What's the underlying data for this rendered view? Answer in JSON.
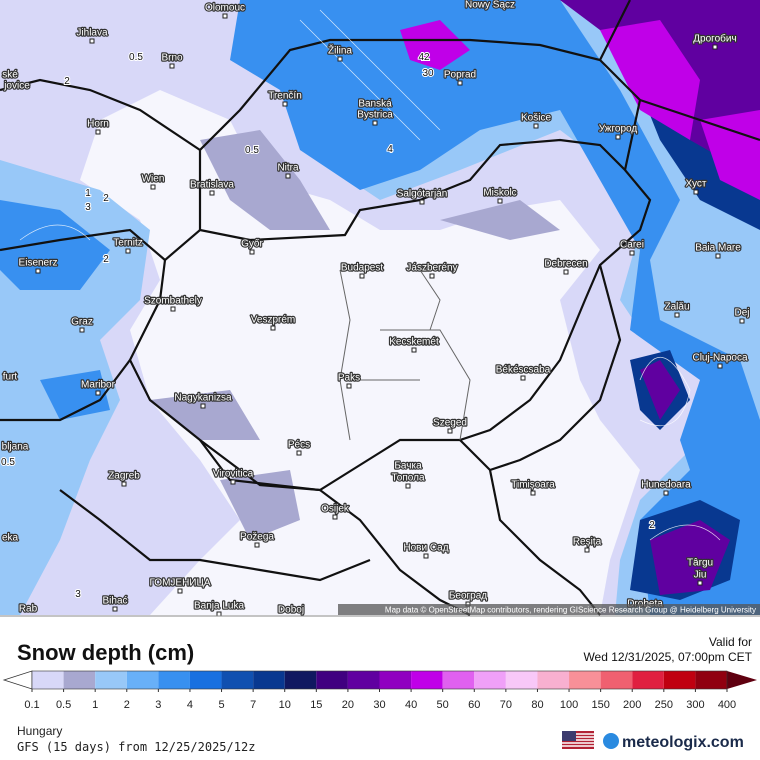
{
  "map": {
    "labels": [
      "Olomouc",
      "Jihlava",
      "Brno",
      "Žilina",
      "Nowy Sącz",
      "Poprad",
      "Trenčín",
      "Banská",
      "Bystrica",
      "Košice",
      "Ужгород",
      "Дрогобич",
      "Horn",
      "Nitra",
      "Wien",
      "Bratislava",
      "Salgótarján",
      "Miskolc",
      "Хуст",
      "Ternitz",
      "Eisenerz",
      "Győr",
      "Budapest",
      "Jászberény",
      "Debrecen",
      "Carei",
      "Baia Mare",
      "Szombathely",
      "Graz",
      "Veszprém",
      "Zalău",
      "Dej",
      "Kecskemét",
      "Cluj-Napoca",
      "Paks",
      "Békéscsaba",
      "Maribor",
      "Nagykanizsa",
      "Szeged",
      "Pécs",
      "Zagreb",
      "Virovitica",
      "Бачка",
      "Топола",
      "Timișoara",
      "Hunedoara",
      "Osijek",
      "Požega",
      "Нови Сад",
      "Reșița",
      "Târgu",
      "Jiu",
      "ГОМЈЕНИЦА",
      "Banja Luka",
      "Bihać",
      "Doboj",
      "Београд",
      "Drobeta",
      "ské",
      "jovice",
      "bljana",
      "furt",
      "eka",
      "Rab"
    ],
    "contour_labels": [
      "0.5",
      "2",
      "42",
      "30",
      "0.5",
      "4",
      "1",
      "3",
      "2",
      "2",
      "0.5",
      "3",
      "2"
    ],
    "credit": "Map data © OpenStreetMap contributors, rendering GIScience Research Group @ Heidelberg University"
  },
  "legend": {
    "title": "Snow depth (cm)",
    "ticks": [
      0.1,
      0.5,
      1,
      2,
      3,
      4,
      5,
      7,
      10,
      15,
      20,
      30,
      40,
      50,
      60,
      70,
      80,
      100,
      150,
      200,
      250,
      300,
      400
    ],
    "colors": [
      "#ffffff",
      "#d8d8f8",
      "#a8a8d0",
      "#98c8f8",
      "#68b0f8",
      "#3890f0",
      "#1870e0",
      "#1050b0",
      "#083890",
      "#101860",
      "#400080",
      "#6000a0",
      "#9000c0",
      "#c000e8",
      "#e060f0",
      "#f0a0f8",
      "#f8c8f8",
      "#f8b0d0",
      "#f89098",
      "#f06070",
      "#e02040",
      "#c00010",
      "#900010",
      "#600010"
    ]
  },
  "valid_label": "Valid for",
  "valid_time": "Wed 12/31/2025, 07:00pm CET",
  "region": "Hungary",
  "model": "GFS (15 days) from  12/25/2025/12z",
  "brand": "meteologix.com"
}
